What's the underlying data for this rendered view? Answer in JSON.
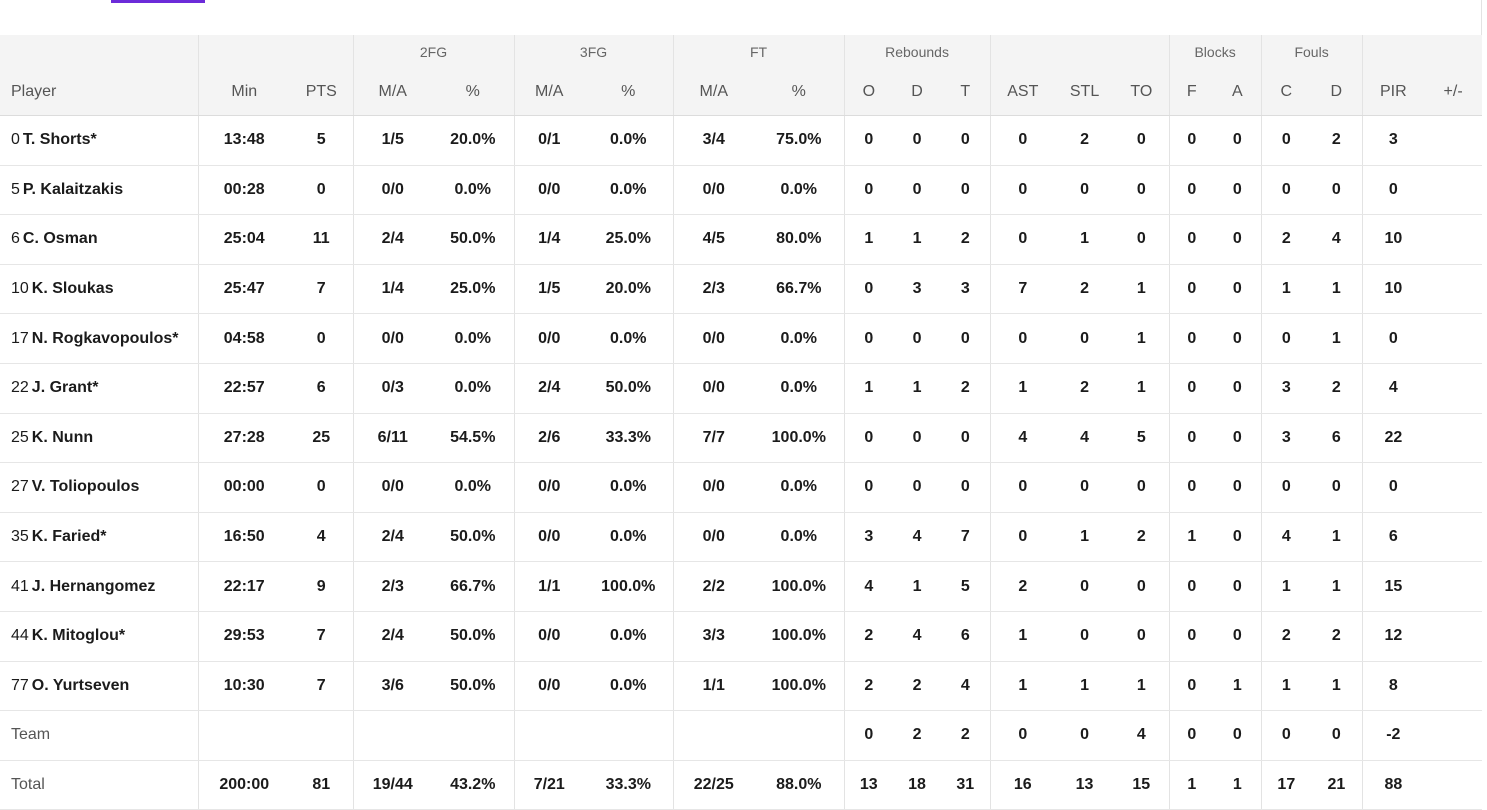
{
  "group_headers": [
    "2FG",
    "3FG",
    "FT",
    "Rebounds",
    "Blocks",
    "Fouls"
  ],
  "columns": [
    "Player",
    "Min",
    "PTS",
    "M/A",
    "%",
    "M/A",
    "%",
    "M/A",
    "%",
    "O",
    "D",
    "T",
    "AST",
    "STL",
    "TO",
    "F",
    "A",
    "C",
    "D",
    "PIR",
    "+/-"
  ],
  "rows": [
    {
      "num": "0",
      "name": "T. Shorts*",
      "min": "13:48",
      "pts": "5",
      "fg2": "1/5",
      "fg2p": "20.0%",
      "fg3": "0/1",
      "fg3p": "0.0%",
      "ft": "3/4",
      "ftp": "75.0%",
      "o": "0",
      "d": "0",
      "t": "0",
      "ast": "0",
      "stl": "2",
      "to": "0",
      "bf": "0",
      "ba": "0",
      "fc": "0",
      "fd": "2",
      "pir": "3",
      "pm": ""
    },
    {
      "num": "5",
      "name": "P. Kalaitzakis",
      "min": "00:28",
      "pts": "0",
      "fg2": "0/0",
      "fg2p": "0.0%",
      "fg3": "0/0",
      "fg3p": "0.0%",
      "ft": "0/0",
      "ftp": "0.0%",
      "o": "0",
      "d": "0",
      "t": "0",
      "ast": "0",
      "stl": "0",
      "to": "0",
      "bf": "0",
      "ba": "0",
      "fc": "0",
      "fd": "0",
      "pir": "0",
      "pm": ""
    },
    {
      "num": "6",
      "name": "C. Osman",
      "min": "25:04",
      "pts": "11",
      "fg2": "2/4",
      "fg2p": "50.0%",
      "fg3": "1/4",
      "fg3p": "25.0%",
      "ft": "4/5",
      "ftp": "80.0%",
      "o": "1",
      "d": "1",
      "t": "2",
      "ast": "0",
      "stl": "1",
      "to": "0",
      "bf": "0",
      "ba": "0",
      "fc": "2",
      "fd": "4",
      "pir": "10",
      "pm": ""
    },
    {
      "num": "10",
      "name": "K. Sloukas",
      "min": "25:47",
      "pts": "7",
      "fg2": "1/4",
      "fg2p": "25.0%",
      "fg3": "1/5",
      "fg3p": "20.0%",
      "ft": "2/3",
      "ftp": "66.7%",
      "o": "0",
      "d": "3",
      "t": "3",
      "ast": "7",
      "stl": "2",
      "to": "1",
      "bf": "0",
      "ba": "0",
      "fc": "1",
      "fd": "1",
      "pir": "10",
      "pm": ""
    },
    {
      "num": "17",
      "name": "N. Rogkavopoulos*",
      "min": "04:58",
      "pts": "0",
      "fg2": "0/0",
      "fg2p": "0.0%",
      "fg3": "0/0",
      "fg3p": "0.0%",
      "ft": "0/0",
      "ftp": "0.0%",
      "o": "0",
      "d": "0",
      "t": "0",
      "ast": "0",
      "stl": "0",
      "to": "1",
      "bf": "0",
      "ba": "0",
      "fc": "0",
      "fd": "1",
      "pir": "0",
      "pm": ""
    },
    {
      "num": "22",
      "name": "J. Grant*",
      "min": "22:57",
      "pts": "6",
      "fg2": "0/3",
      "fg2p": "0.0%",
      "fg3": "2/4",
      "fg3p": "50.0%",
      "ft": "0/0",
      "ftp": "0.0%",
      "o": "1",
      "d": "1",
      "t": "2",
      "ast": "1",
      "stl": "2",
      "to": "1",
      "bf": "0",
      "ba": "0",
      "fc": "3",
      "fd": "2",
      "pir": "4",
      "pm": ""
    },
    {
      "num": "25",
      "name": "K. Nunn",
      "min": "27:28",
      "pts": "25",
      "fg2": "6/11",
      "fg2p": "54.5%",
      "fg3": "2/6",
      "fg3p": "33.3%",
      "ft": "7/7",
      "ftp": "100.0%",
      "o": "0",
      "d": "0",
      "t": "0",
      "ast": "4",
      "stl": "4",
      "to": "5",
      "bf": "0",
      "ba": "0",
      "fc": "3",
      "fd": "6",
      "pir": "22",
      "pm": ""
    },
    {
      "num": "27",
      "name": "V. Toliopoulos",
      "min": "00:00",
      "pts": "0",
      "fg2": "0/0",
      "fg2p": "0.0%",
      "fg3": "0/0",
      "fg3p": "0.0%",
      "ft": "0/0",
      "ftp": "0.0%",
      "o": "0",
      "d": "0",
      "t": "0",
      "ast": "0",
      "stl": "0",
      "to": "0",
      "bf": "0",
      "ba": "0",
      "fc": "0",
      "fd": "0",
      "pir": "0",
      "pm": ""
    },
    {
      "num": "35",
      "name": "K. Faried*",
      "min": "16:50",
      "pts": "4",
      "fg2": "2/4",
      "fg2p": "50.0%",
      "fg3": "0/0",
      "fg3p": "0.0%",
      "ft": "0/0",
      "ftp": "0.0%",
      "o": "3",
      "d": "4",
      "t": "7",
      "ast": "0",
      "stl": "1",
      "to": "2",
      "bf": "1",
      "ba": "0",
      "fc": "4",
      "fd": "1",
      "pir": "6",
      "pm": ""
    },
    {
      "num": "41",
      "name": "J. Hernangomez",
      "min": "22:17",
      "pts": "9",
      "fg2": "2/3",
      "fg2p": "66.7%",
      "fg3": "1/1",
      "fg3p": "100.0%",
      "ft": "2/2",
      "ftp": "100.0%",
      "o": "4",
      "d": "1",
      "t": "5",
      "ast": "2",
      "stl": "0",
      "to": "0",
      "bf": "0",
      "ba": "0",
      "fc": "1",
      "fd": "1",
      "pir": "15",
      "pm": ""
    },
    {
      "num": "44",
      "name": "K. Mitoglou*",
      "min": "29:53",
      "pts": "7",
      "fg2": "2/4",
      "fg2p": "50.0%",
      "fg3": "0/0",
      "fg3p": "0.0%",
      "ft": "3/3",
      "ftp": "100.0%",
      "o": "2",
      "d": "4",
      "t": "6",
      "ast": "1",
      "stl": "0",
      "to": "0",
      "bf": "0",
      "ba": "0",
      "fc": "2",
      "fd": "2",
      "pir": "12",
      "pm": ""
    },
    {
      "num": "77",
      "name": "O. Yurtseven",
      "min": "10:30",
      "pts": "7",
      "fg2": "3/6",
      "fg2p": "50.0%",
      "fg3": "0/0",
      "fg3p": "0.0%",
      "ft": "1/1",
      "ftp": "100.0%",
      "o": "2",
      "d": "2",
      "t": "4",
      "ast": "1",
      "stl": "1",
      "to": "1",
      "bf": "0",
      "ba": "1",
      "fc": "1",
      "fd": "1",
      "pir": "8",
      "pm": ""
    }
  ],
  "team": {
    "label": "Team",
    "min": "",
    "pts": "",
    "fg2": "",
    "fg2p": "",
    "fg3": "",
    "fg3p": "",
    "ft": "",
    "ftp": "",
    "o": "0",
    "d": "2",
    "t": "2",
    "ast": "0",
    "stl": "0",
    "to": "4",
    "bf": "0",
    "ba": "0",
    "fc": "0",
    "fd": "0",
    "pir": "-2",
    "pm": ""
  },
  "total": {
    "label": "Total",
    "min": "200:00",
    "pts": "81",
    "fg2": "19/44",
    "fg2p": "43.2%",
    "fg3": "7/21",
    "fg3p": "33.3%",
    "ft": "22/25",
    "ftp": "88.0%",
    "o": "13",
    "d": "18",
    "t": "31",
    "ast": "16",
    "stl": "13",
    "to": "15",
    "bf": "1",
    "ba": "1",
    "fc": "17",
    "fd": "21",
    "pir": "88",
    "pm": ""
  },
  "colors": {
    "accent": "#6c2bd9",
    "header_bg": "#f4f4f4",
    "border": "#e3e3e3"
  }
}
